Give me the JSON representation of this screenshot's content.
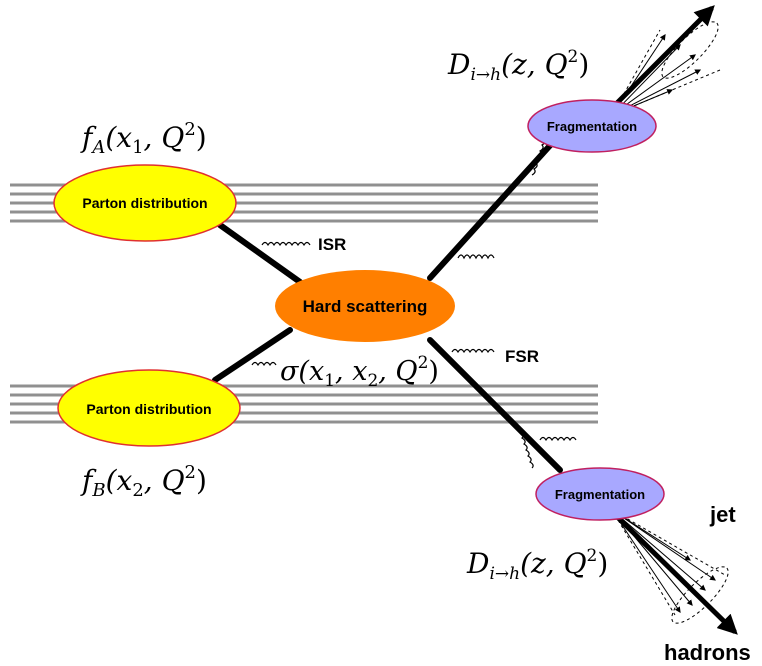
{
  "nodes": {
    "parton_top": {
      "label": "Parton distribution",
      "fill": "#ffff00",
      "stroke": "#e03030"
    },
    "parton_bottom": {
      "label": "Parton distribution",
      "fill": "#ffff00",
      "stroke": "#e03030"
    },
    "hard_scattering": {
      "label": "Hard scattering",
      "fill": "#ff7f00"
    },
    "frag_top": {
      "label": "Fragmentation",
      "fill": "#a8a8ff",
      "stroke": "#c02060"
    },
    "frag_bottom": {
      "label": "Fragmentation",
      "fill": "#a8a8ff",
      "stroke": "#c02060"
    }
  },
  "formulas": {
    "fA": {
      "base": "f",
      "sub": "A",
      "args": "(x",
      "arg_sub": "1",
      "tail": ", Q",
      "sup": "2",
      "close": ")"
    },
    "fB": {
      "base": "f",
      "sub": "B",
      "args": "(x",
      "arg_sub": "2",
      "tail": ", Q",
      "sup": "2",
      "close": ")"
    },
    "sigma": {
      "base": "σ(x",
      "sub1": "1",
      "mid": ", x",
      "sub2": "2",
      "tail": ", Q",
      "sup": "2",
      "close": ")"
    },
    "D_top": {
      "base": "D",
      "sub": "i→h",
      "args": "(z, Q",
      "sup": "2",
      "close": ")"
    },
    "D_bottom": {
      "base": "D",
      "sub": "i→h",
      "args": "(z, Q",
      "sup": "2",
      "close": ")"
    }
  },
  "labels": {
    "isr": "ISR",
    "fsr": "FSR",
    "jet": "jet",
    "hadrons": "hadrons"
  },
  "colors": {
    "beam_lines": "#909090",
    "parton_lines": "#000000"
  }
}
